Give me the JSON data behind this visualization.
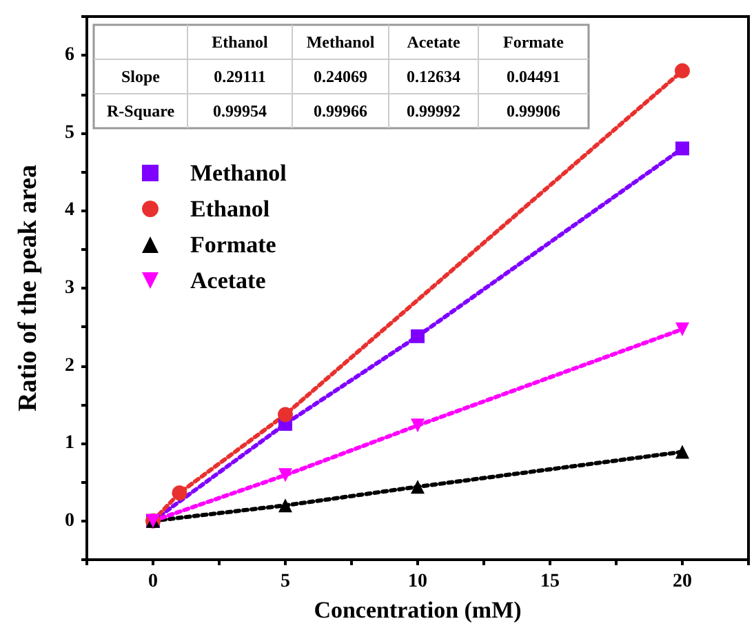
{
  "chart_data": {
    "type": "line",
    "xlabel": "Concentration (mM)",
    "ylabel": "Ratio of the peak area",
    "series": [
      {
        "name": "Methanol",
        "color": "#7f00ff",
        "marker": "square",
        "x": [
          0,
          5,
          10,
          20
        ],
        "values": [
          0,
          1.25,
          2.38,
          4.8
        ]
      },
      {
        "name": "Ethanol",
        "color": "#e8312f",
        "marker": "circle",
        "x": [
          0,
          1,
          5,
          20
        ],
        "values": [
          0,
          0.36,
          1.37,
          5.8
        ]
      },
      {
        "name": "Formate",
        "color": "#000000",
        "marker": "triangle",
        "x": [
          0,
          5,
          10,
          20
        ],
        "values": [
          0,
          0.2,
          0.44,
          0.89
        ]
      },
      {
        "name": "Acetate",
        "color": "#ff00ff",
        "marker": "triangle-down",
        "x": [
          0,
          5,
          10,
          20
        ],
        "values": [
          0,
          0.59,
          1.23,
          2.47
        ]
      }
    ],
    "xlim": [
      -2.5,
      22.5
    ],
    "xticks": [
      {
        "value": -2.5,
        "label": null
      },
      0,
      {
        "value": 2.5,
        "label": null
      },
      5,
      {
        "value": 7.5,
        "label": null
      },
      10,
      {
        "value": 12.5,
        "label": null
      },
      15,
      {
        "value": 17.5,
        "label": null
      },
      20,
      {
        "value": 22.5,
        "label": null
      }
    ],
    "ylim": [
      -0.5,
      6.5
    ],
    "yticks": [
      {
        "value": -0.5,
        "label": null
      },
      0,
      {
        "value": 0.5,
        "label": null
      },
      1,
      {
        "value": 1.5,
        "label": null
      },
      2,
      {
        "value": 2.5,
        "label": null
      },
      3,
      {
        "value": 3.5,
        "label": null
      },
      4,
      {
        "value": 4.5,
        "label": null
      },
      5,
      {
        "value": 5.5,
        "label": null
      },
      6,
      {
        "value": 6.5,
        "label": null
      }
    ],
    "line_style": "dotted",
    "legend": "top left",
    "annotations": [
      "Ethanol",
      "Methanol",
      "Acetate",
      "Formate",
      "Slope",
      "0.29111",
      "0.24069",
      "0.12634",
      "0.04491",
      "R-Square",
      "0.99954",
      "0.99966",
      "0.99992",
      "0.99906"
    ]
  }
}
